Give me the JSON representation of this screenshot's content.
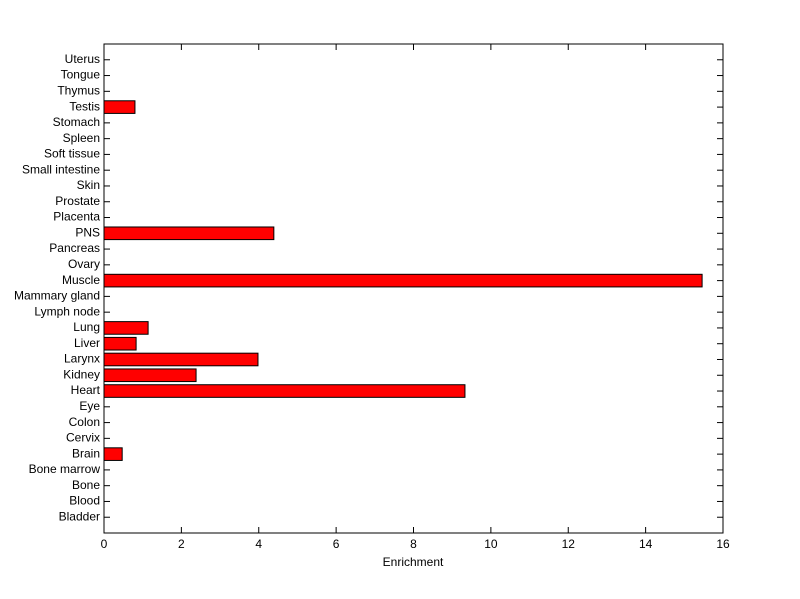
{
  "chart_data": {
    "type": "barh",
    "categories": [
      "Bladder",
      "Blood",
      "Bone",
      "Bone marrow",
      "Brain",
      "Cervix",
      "Colon",
      "Eye",
      "Heart",
      "Kidney",
      "Larynx",
      "Liver",
      "Lung",
      "Lymph node",
      "Mammary gland",
      "Muscle",
      "Ovary",
      "Pancreas",
      "PNS",
      "Placenta",
      "Prostate",
      "Skin",
      "Small intestine",
      "Soft tissue",
      "Spleen",
      "Stomach",
      "Testis",
      "Thymus",
      "Tongue",
      "Uterus"
    ],
    "values": [
      0,
      0,
      0,
      0,
      0.47,
      0,
      0,
      0,
      9.33,
      2.38,
      3.98,
      0.83,
      1.14,
      0,
      0,
      15.46,
      0,
      0,
      4.39,
      0,
      0,
      0,
      0,
      0,
      0,
      0,
      0.8,
      0,
      0,
      0
    ],
    "color": "#ff0000",
    "xlabel": "Enrichment",
    "xlim": [
      0,
      16
    ],
    "xticks": [
      0,
      2,
      4,
      6,
      8,
      10,
      12,
      14,
      16
    ]
  }
}
